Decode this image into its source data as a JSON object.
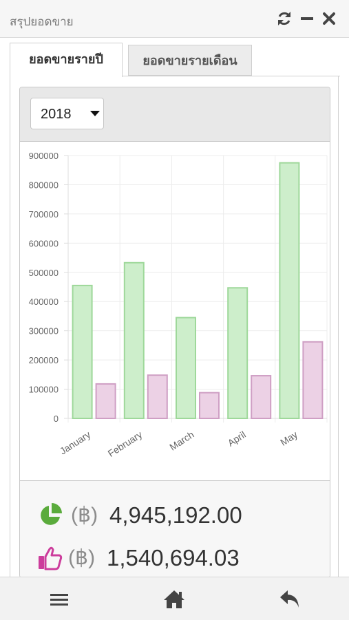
{
  "window": {
    "title": "สรุปยอดขาย",
    "controls": [
      "refresh-icon",
      "minimize-icon",
      "close-icon"
    ]
  },
  "tabs": [
    {
      "label": "ยอดขายรายปี",
      "active": true
    },
    {
      "label": "ยอดขายรายเดือน",
      "active": false
    }
  ],
  "year_select": {
    "value": "2018"
  },
  "chart_data": {
    "type": "bar",
    "categories": [
      "January",
      "February",
      "March",
      "April",
      "May"
    ],
    "series": [
      {
        "values": [
          455000,
          533000,
          345000,
          447000,
          875000
        ],
        "color": "#9ed89a",
        "fill": "#cdeecb"
      },
      {
        "values": [
          118000,
          148000,
          88000,
          146000,
          262000
        ],
        "color": "#cf9fc4",
        "fill": "#ecd1e5"
      }
    ],
    "ylim": [
      0,
      900000
    ],
    "yticks": [
      "0",
      "100000",
      "200000",
      "300000",
      "400000",
      "500000",
      "600000",
      "700000",
      "800000",
      "900000"
    ],
    "grid": true,
    "title": "",
    "xlabel": "",
    "ylabel": ""
  },
  "summary": {
    "total": {
      "currency": "(฿)",
      "amount": "4,945,192.00",
      "icon": "pie-chart-icon",
      "color": "#5aab3c"
    },
    "profit": {
      "currency": "(฿)",
      "amount": "1,540,694.03",
      "icon": "thumbs-up-icon",
      "color": "#cc3d9c"
    }
  },
  "bottom_nav": [
    "menu-icon",
    "home-icon",
    "back-icon"
  ]
}
